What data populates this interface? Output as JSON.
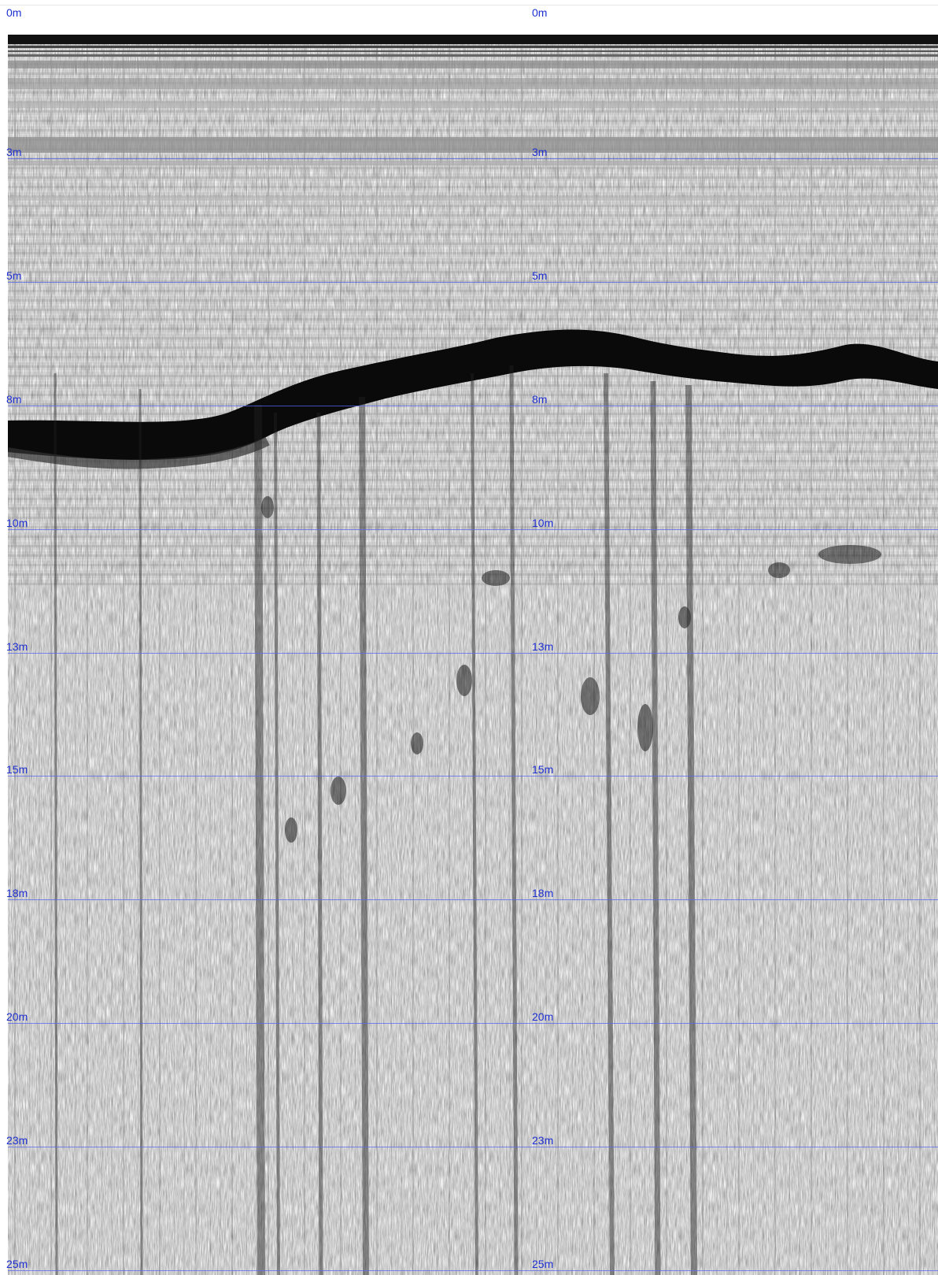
{
  "colors": {
    "depth_label": "#1f2fd0",
    "grid_line": "#5566ee",
    "reflector": "#0a0a0a",
    "background": "#f2f2f2"
  },
  "depth_scale": {
    "labels": [
      "0m",
      "3m",
      "5m",
      "8m",
      "10m",
      "13m",
      "15m",
      "18m",
      "20m",
      "23m",
      "25m"
    ]
  }
}
